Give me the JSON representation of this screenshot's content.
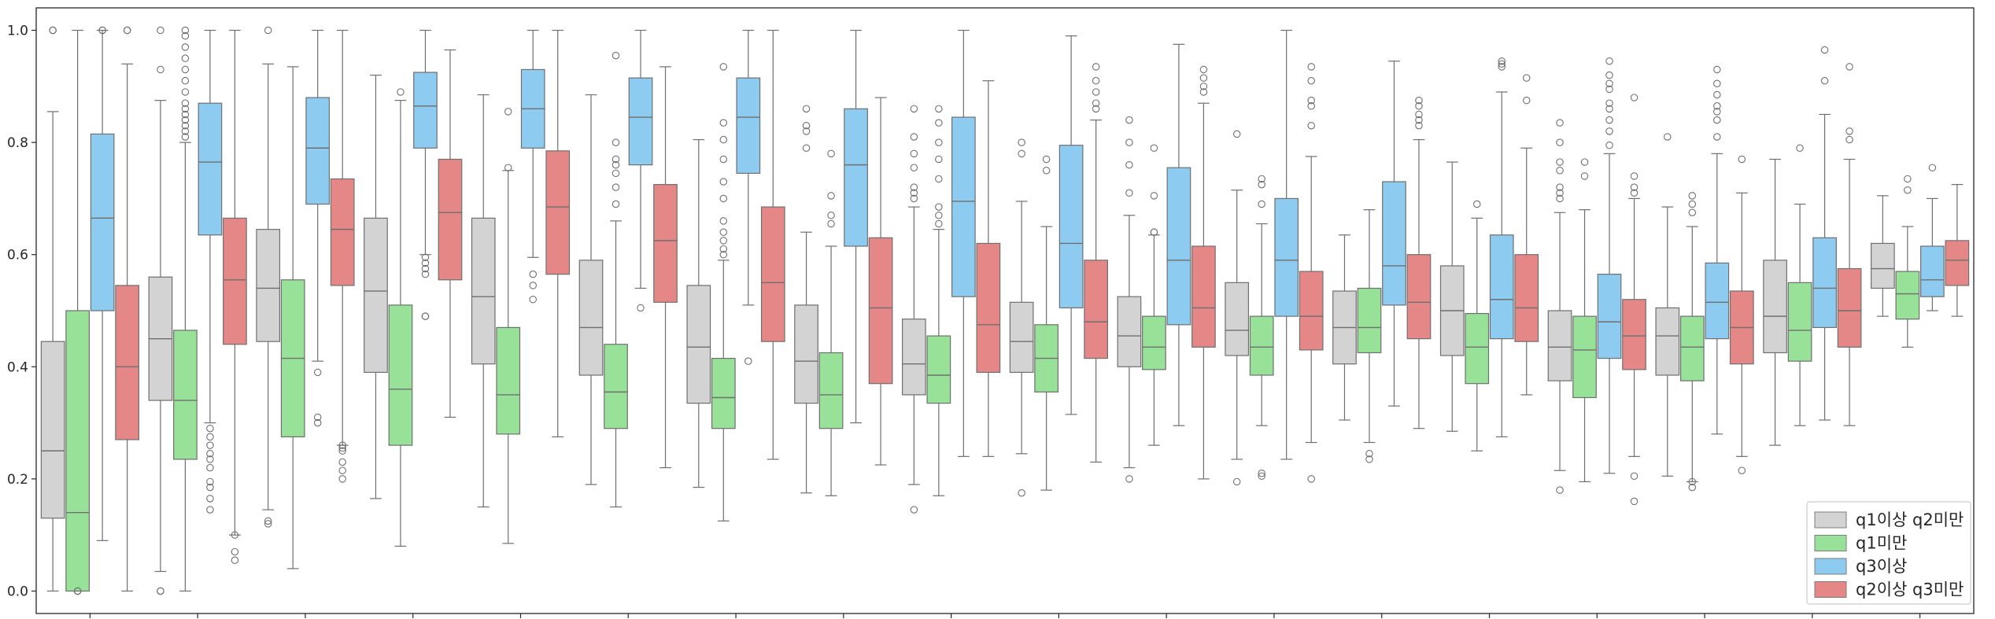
{
  "chart_data": {
    "type": "box",
    "title": "",
    "xlabel": "",
    "ylabel": "",
    "ylim": [
      -0.04,
      1.04
    ],
    "yticks": [
      "0.0",
      "0.2",
      "0.4",
      "0.6",
      "0.8",
      "1.0"
    ],
    "grid": false,
    "legend_position": "bottom-right",
    "group_count": 18,
    "categories": [
      "",
      "",
      "",
      "",
      "",
      "",
      "",
      "",
      "",
      "",
      "",
      "",
      "",
      "",
      "",
      "",
      "",
      ""
    ],
    "series": [
      {
        "name": "q1이상 q2미만",
        "color": "#d3d3d3",
        "boxes": [
          {
            "whislo": 0.0,
            "q1": 0.13,
            "med": 0.25,
            "q3": 0.445,
            "whishi": 0.855,
            "fliers": [
              1.0,
              1.0
            ]
          },
          {
            "whislo": 0.035,
            "q1": 0.34,
            "med": 0.45,
            "q3": 0.56,
            "whishi": 0.875,
            "fliers": [
              0.0,
              0.0,
              0.93,
              1.0
            ]
          },
          {
            "whislo": 0.145,
            "q1": 0.445,
            "med": 0.54,
            "q3": 0.645,
            "whishi": 0.94,
            "fliers": [
              0.12,
              0.125,
              1.0
            ]
          },
          {
            "whislo": 0.165,
            "q1": 0.39,
            "med": 0.535,
            "q3": 0.665,
            "whishi": 0.92,
            "fliers": []
          },
          {
            "whislo": 0.15,
            "q1": 0.405,
            "med": 0.525,
            "q3": 0.665,
            "whishi": 0.885,
            "fliers": []
          },
          {
            "whislo": 0.19,
            "q1": 0.385,
            "med": 0.47,
            "q3": 0.59,
            "whishi": 0.885,
            "fliers": []
          },
          {
            "whislo": 0.185,
            "q1": 0.335,
            "med": 0.435,
            "q3": 0.545,
            "whishi": 0.805,
            "fliers": []
          },
          {
            "whislo": 0.175,
            "q1": 0.335,
            "med": 0.41,
            "q3": 0.51,
            "whishi": 0.64,
            "fliers": [
              0.79,
              0.82,
              0.83,
              0.86
            ]
          },
          {
            "whislo": 0.19,
            "q1": 0.35,
            "med": 0.405,
            "q3": 0.485,
            "whishi": 0.685,
            "fliers": [
              0.145,
              0.7,
              0.71,
              0.72,
              0.755,
              0.78,
              0.81,
              0.86
            ]
          },
          {
            "whislo": 0.245,
            "q1": 0.39,
            "med": 0.445,
            "q3": 0.515,
            "whishi": 0.695,
            "fliers": [
              0.175,
              0.78,
              0.8
            ]
          },
          {
            "whislo": 0.22,
            "q1": 0.4,
            "med": 0.455,
            "q3": 0.525,
            "whishi": 0.67,
            "fliers": [
              0.2,
              0.71,
              0.76,
              0.8,
              0.84
            ]
          },
          {
            "whislo": 0.235,
            "q1": 0.42,
            "med": 0.465,
            "q3": 0.55,
            "whishi": 0.715,
            "fliers": [
              0.195,
              0.815
            ]
          },
          {
            "whislo": 0.305,
            "q1": 0.405,
            "med": 0.47,
            "q3": 0.535,
            "whishi": 0.635,
            "fliers": []
          },
          {
            "whislo": 0.285,
            "q1": 0.42,
            "med": 0.5,
            "q3": 0.58,
            "whishi": 0.765,
            "fliers": []
          },
          {
            "whislo": 0.215,
            "q1": 0.375,
            "med": 0.435,
            "q3": 0.5,
            "whishi": 0.675,
            "fliers": [
              0.18,
              0.7,
              0.71,
              0.72,
              0.75,
              0.765,
              0.8,
              0.835
            ]
          },
          {
            "whislo": 0.205,
            "q1": 0.385,
            "med": 0.455,
            "q3": 0.505,
            "whishi": 0.685,
            "fliers": [
              0.81
            ]
          },
          {
            "whislo": 0.26,
            "q1": 0.425,
            "med": 0.49,
            "q3": 0.59,
            "whishi": 0.77,
            "fliers": []
          },
          {
            "whislo": 0.49,
            "q1": 0.54,
            "med": 0.575,
            "q3": 0.62,
            "whishi": 0.705,
            "fliers": []
          }
        ]
      },
      {
        "name": "q1미만",
        "color": "#98e198",
        "boxes": [
          {
            "whislo": 0.0,
            "q1": 0.0,
            "med": 0.14,
            "q3": 0.5,
            "whishi": 1.0,
            "fliers": [
              0.0,
              0.0
            ]
          },
          {
            "whislo": 0.0,
            "q1": 0.235,
            "med": 0.34,
            "q3": 0.465,
            "whishi": 0.8,
            "fliers": [
              0.81,
              0.82,
              0.83,
              0.84,
              0.85,
              0.86,
              0.87,
              0.89,
              0.91,
              0.93,
              0.95,
              0.97,
              0.99,
              1.0
            ]
          },
          {
            "whislo": 0.04,
            "q1": 0.275,
            "med": 0.415,
            "q3": 0.555,
            "whishi": 0.935,
            "fliers": []
          },
          {
            "whislo": 0.08,
            "q1": 0.26,
            "med": 0.36,
            "q3": 0.51,
            "whishi": 0.875,
            "fliers": [
              0.89
            ]
          },
          {
            "whislo": 0.085,
            "q1": 0.28,
            "med": 0.35,
            "q3": 0.47,
            "whishi": 0.75,
            "fliers": [
              0.755,
              0.855
            ]
          },
          {
            "whislo": 0.15,
            "q1": 0.29,
            "med": 0.355,
            "q3": 0.44,
            "whishi": 0.66,
            "fliers": [
              0.69,
              0.72,
              0.745,
              0.76,
              0.77,
              0.8,
              0.955
            ]
          },
          {
            "whislo": 0.125,
            "q1": 0.29,
            "med": 0.345,
            "q3": 0.415,
            "whishi": 0.59,
            "fliers": [
              0.6,
              0.61,
              0.625,
              0.64,
              0.66,
              0.7,
              0.73,
              0.77,
              0.805,
              0.835,
              0.935
            ]
          },
          {
            "whislo": 0.17,
            "q1": 0.29,
            "med": 0.35,
            "q3": 0.425,
            "whishi": 0.615,
            "fliers": [
              0.655,
              0.67,
              0.705,
              0.78
            ]
          },
          {
            "whislo": 0.17,
            "q1": 0.335,
            "med": 0.385,
            "q3": 0.455,
            "whishi": 0.645,
            "fliers": [
              0.655,
              0.67,
              0.685,
              0.735,
              0.77,
              0.8,
              0.835,
              0.86
            ]
          },
          {
            "whislo": 0.18,
            "q1": 0.355,
            "med": 0.415,
            "q3": 0.475,
            "whishi": 0.65,
            "fliers": [
              0.75,
              0.77
            ]
          },
          {
            "whislo": 0.26,
            "q1": 0.395,
            "med": 0.435,
            "q3": 0.49,
            "whishi": 0.635,
            "fliers": [
              0.64,
              0.64,
              0.705,
              0.79
            ]
          },
          {
            "whislo": 0.295,
            "q1": 0.385,
            "med": 0.435,
            "q3": 0.49,
            "whishi": 0.655,
            "fliers": [
              0.205,
              0.21,
              0.69,
              0.725,
              0.735
            ]
          },
          {
            "whislo": 0.265,
            "q1": 0.425,
            "med": 0.47,
            "q3": 0.54,
            "whishi": 0.68,
            "fliers": [
              0.235,
              0.245
            ]
          },
          {
            "whislo": 0.25,
            "q1": 0.37,
            "med": 0.435,
            "q3": 0.495,
            "whishi": 0.665,
            "fliers": [
              0.69
            ]
          },
          {
            "whislo": 0.195,
            "q1": 0.345,
            "med": 0.43,
            "q3": 0.49,
            "whishi": 0.68,
            "fliers": [
              0.74,
              0.765
            ]
          },
          {
            "whislo": 0.195,
            "q1": 0.375,
            "med": 0.435,
            "q3": 0.49,
            "whishi": 0.65,
            "fliers": [
              0.185,
              0.195,
              0.675,
              0.69,
              0.705
            ]
          },
          {
            "whislo": 0.295,
            "q1": 0.41,
            "med": 0.465,
            "q3": 0.55,
            "whishi": 0.69,
            "fliers": [
              0.79
            ]
          },
          {
            "whislo": 0.435,
            "q1": 0.485,
            "med": 0.53,
            "q3": 0.57,
            "whishi": 0.65,
            "fliers": [
              0.715,
              0.735
            ]
          }
        ]
      },
      {
        "name": "q3이상",
        "color": "#8ecbf0",
        "boxes": [
          {
            "whislo": 0.09,
            "q1": 0.5,
            "med": 0.665,
            "q3": 0.815,
            "whishi": 1.0,
            "fliers": [
              1.0,
              1.0
            ]
          },
          {
            "whislo": 0.3,
            "q1": 0.635,
            "med": 0.765,
            "q3": 0.87,
            "whishi": 1.0,
            "fliers": [
              0.145,
              0.165,
              0.185,
              0.195,
              0.22,
              0.235,
              0.245,
              0.26,
              0.275,
              0.29
            ]
          },
          {
            "whislo": 0.41,
            "q1": 0.69,
            "med": 0.79,
            "q3": 0.88,
            "whishi": 1.0,
            "fliers": [
              0.3,
              0.31,
              0.39
            ]
          },
          {
            "whislo": 0.6,
            "q1": 0.79,
            "med": 0.865,
            "q3": 0.925,
            "whishi": 1.0,
            "fliers": [
              0.49,
              0.49,
              0.565,
              0.575,
              0.585,
              0.595
            ]
          },
          {
            "whislo": 0.595,
            "q1": 0.79,
            "med": 0.86,
            "q3": 0.93,
            "whishi": 1.0,
            "fliers": [
              0.52,
              0.545,
              0.565
            ]
          },
          {
            "whislo": 0.54,
            "q1": 0.76,
            "med": 0.845,
            "q3": 0.915,
            "whishi": 1.0,
            "fliers": [
              0.505
            ]
          },
          {
            "whislo": 0.51,
            "q1": 0.745,
            "med": 0.845,
            "q3": 0.915,
            "whishi": 1.0,
            "fliers": [
              0.41
            ]
          },
          {
            "whislo": 0.3,
            "q1": 0.615,
            "med": 0.76,
            "q3": 0.86,
            "whishi": 1.0,
            "fliers": []
          },
          {
            "whislo": 0.24,
            "q1": 0.525,
            "med": 0.695,
            "q3": 0.845,
            "whishi": 1.0,
            "fliers": []
          },
          {
            "whislo": 0.315,
            "q1": 0.505,
            "med": 0.62,
            "q3": 0.795,
            "whishi": 0.99,
            "fliers": []
          },
          {
            "whislo": 0.295,
            "q1": 0.475,
            "med": 0.59,
            "q3": 0.755,
            "whishi": 0.975,
            "fliers": []
          },
          {
            "whislo": 0.235,
            "q1": 0.49,
            "med": 0.59,
            "q3": 0.7,
            "whishi": 1.0,
            "fliers": []
          },
          {
            "whislo": 0.33,
            "q1": 0.51,
            "med": 0.58,
            "q3": 0.73,
            "whishi": 0.945,
            "fliers": []
          },
          {
            "whislo": 0.275,
            "q1": 0.45,
            "med": 0.52,
            "q3": 0.635,
            "whishi": 0.89,
            "fliers": [
              0.935,
              0.94,
              0.945
            ]
          },
          {
            "whislo": 0.21,
            "q1": 0.415,
            "med": 0.48,
            "q3": 0.565,
            "whishi": 0.78,
            "fliers": [
              0.795,
              0.82,
              0.84,
              0.86,
              0.87,
              0.895,
              0.905,
              0.92,
              0.945
            ]
          },
          {
            "whislo": 0.28,
            "q1": 0.45,
            "med": 0.515,
            "q3": 0.585,
            "whishi": 0.78,
            "fliers": [
              0.81,
              0.84,
              0.855,
              0.865,
              0.885,
              0.905,
              0.93
            ]
          },
          {
            "whislo": 0.305,
            "q1": 0.47,
            "med": 0.54,
            "q3": 0.63,
            "whishi": 0.85,
            "fliers": [
              0.91,
              0.965
            ]
          },
          {
            "whislo": 0.5,
            "q1": 0.525,
            "med": 0.555,
            "q3": 0.615,
            "whishi": 0.7,
            "fliers": [
              0.755
            ]
          }
        ]
      },
      {
        "name": "q2이상 q3미만",
        "color": "#e58786",
        "boxes": [
          {
            "whislo": 0.0,
            "q1": 0.27,
            "med": 0.4,
            "q3": 0.545,
            "whishi": 0.94,
            "fliers": [
              1.0,
              1.0
            ]
          },
          {
            "whislo": 0.1,
            "q1": 0.44,
            "med": 0.555,
            "q3": 0.665,
            "whishi": 1.0,
            "fliers": [
              0.055,
              0.07,
              0.1
            ]
          },
          {
            "whislo": 0.26,
            "q1": 0.545,
            "med": 0.645,
            "q3": 0.735,
            "whishi": 1.0,
            "fliers": [
              0.2,
              0.215,
              0.23,
              0.25,
              0.255,
              0.26
            ]
          },
          {
            "whislo": 0.31,
            "q1": 0.555,
            "med": 0.675,
            "q3": 0.77,
            "whishi": 0.965,
            "fliers": []
          },
          {
            "whislo": 0.275,
            "q1": 0.565,
            "med": 0.685,
            "q3": 0.785,
            "whishi": 1.0,
            "fliers": []
          },
          {
            "whislo": 0.22,
            "q1": 0.515,
            "med": 0.625,
            "q3": 0.725,
            "whishi": 0.935,
            "fliers": []
          },
          {
            "whislo": 0.235,
            "q1": 0.445,
            "med": 0.55,
            "q3": 0.685,
            "whishi": 1.0,
            "fliers": []
          },
          {
            "whislo": 0.225,
            "q1": 0.37,
            "med": 0.505,
            "q3": 0.63,
            "whishi": 0.88,
            "fliers": []
          },
          {
            "whislo": 0.24,
            "q1": 0.39,
            "med": 0.475,
            "q3": 0.62,
            "whishi": 0.91,
            "fliers": []
          },
          {
            "whislo": 0.23,
            "q1": 0.415,
            "med": 0.48,
            "q3": 0.59,
            "whishi": 0.84,
            "fliers": [
              0.86,
              0.87,
              0.89,
              0.91,
              0.935
            ]
          },
          {
            "whislo": 0.2,
            "q1": 0.435,
            "med": 0.505,
            "q3": 0.615,
            "whishi": 0.87,
            "fliers": [
              0.89,
              0.9,
              0.915,
              0.93
            ]
          },
          {
            "whislo": 0.265,
            "q1": 0.43,
            "med": 0.49,
            "q3": 0.57,
            "whishi": 0.775,
            "fliers": [
              0.2,
              0.83,
              0.865,
              0.875,
              0.91,
              0.935
            ]
          },
          {
            "whislo": 0.29,
            "q1": 0.45,
            "med": 0.515,
            "q3": 0.6,
            "whishi": 0.805,
            "fliers": [
              0.83,
              0.84,
              0.85,
              0.865,
              0.875
            ]
          },
          {
            "whislo": 0.35,
            "q1": 0.445,
            "med": 0.505,
            "q3": 0.6,
            "whishi": 0.79,
            "fliers": [
              0.875,
              0.915
            ]
          },
          {
            "whislo": 0.24,
            "q1": 0.395,
            "med": 0.455,
            "q3": 0.52,
            "whishi": 0.7,
            "fliers": [
              0.16,
              0.205,
              0.71,
              0.72,
              0.74,
              0.88
            ]
          },
          {
            "whislo": 0.24,
            "q1": 0.405,
            "med": 0.47,
            "q3": 0.535,
            "whishi": 0.71,
            "fliers": [
              0.215,
              0.77
            ]
          },
          {
            "whislo": 0.295,
            "q1": 0.435,
            "med": 0.5,
            "q3": 0.575,
            "whishi": 0.77,
            "fliers": [
              0.805,
              0.82,
              0.935
            ]
          },
          {
            "whislo": 0.49,
            "q1": 0.545,
            "med": 0.59,
            "q3": 0.625,
            "whishi": 0.725,
            "fliers": []
          }
        ]
      }
    ]
  }
}
